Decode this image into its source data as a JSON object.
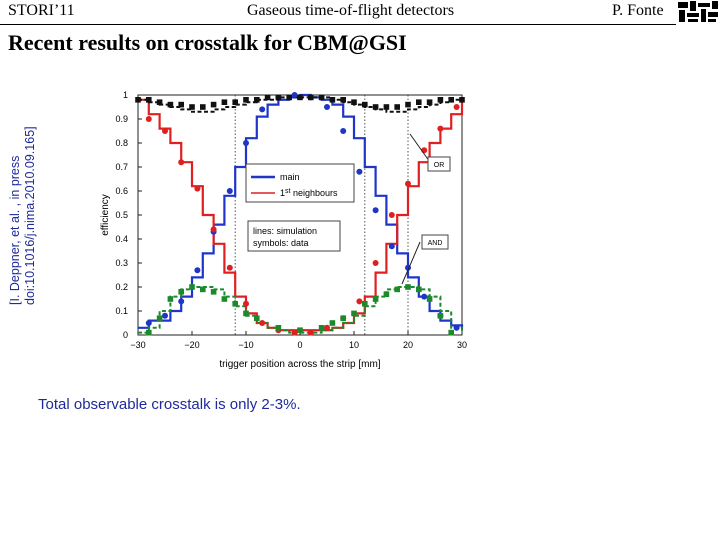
{
  "header": {
    "left": "STORI’11",
    "center": "Gaseous time-of-flight detectors",
    "right": "P. Fonte"
  },
  "title": "Recent results on crosstalk for CBM@GSI",
  "citation": {
    "line1": "[I. Deppner, et al. , in press",
    "line2": "doi:10.1016/j.nima.2010.09.165]"
  },
  "caption": "Total observable crosstalk is only 2-3%.",
  "logo_icon": "institution-logo-icon",
  "chart_data": {
    "type": "line",
    "xlabel": "trigger position across the strip [mm]",
    "ylabel": "efficiency",
    "xlim": [
      -30,
      30
    ],
    "ylim": [
      0,
      1
    ],
    "xticks": [
      -30,
      -20,
      -10,
      0,
      10,
      20,
      30
    ],
    "yticks": [
      0,
      0.1,
      0.2,
      0.3,
      0.4,
      0.5,
      0.6,
      0.7,
      0.8,
      0.9,
      1
    ],
    "vlines": [
      -12,
      12,
      20
    ],
    "legend": {
      "main": "main",
      "neighbours_prefix": "1",
      "neighbours_sup": "st",
      "neighbours_suffix": " neighbours",
      "note1": "lines: simulation",
      "note2": "symbols: data"
    },
    "annotations": {
      "or": "OR",
      "and": "AND"
    },
    "colors": {
      "main": "#1f35c8",
      "neighbour": "#e02020",
      "and": "#1a8a2a",
      "or": "#111111"
    },
    "series": [
      {
        "name": "main",
        "style": "line",
        "x": [
          -30,
          -28,
          -26,
          -24,
          -22,
          -20,
          -18,
          -16,
          -14,
          -12,
          -10,
          -8,
          -6,
          -4,
          -2,
          0,
          2,
          4,
          6,
          8,
          10,
          12,
          14,
          16,
          18,
          20,
          22,
          24,
          26,
          28,
          30
        ],
        "y": [
          0.03,
          0.06,
          0.06,
          0.1,
          0.16,
          0.24,
          0.34,
          0.46,
          0.58,
          0.7,
          0.82,
          0.91,
          0.96,
          0.98,
          0.99,
          1.0,
          0.99,
          0.98,
          0.96,
          0.91,
          0.82,
          0.7,
          0.58,
          0.46,
          0.34,
          0.24,
          0.16,
          0.1,
          0.06,
          0.04,
          0.03
        ]
      },
      {
        "name": "1st neighbours",
        "style": "line",
        "x": [
          -30,
          -28,
          -26,
          -24,
          -22,
          -20,
          -18,
          -16,
          -14,
          -12,
          -10,
          -8,
          -6,
          -4,
          -2,
          0,
          2,
          4,
          6,
          8,
          10,
          12,
          14,
          16,
          18,
          20,
          22,
          24,
          26,
          28,
          30
        ],
        "y": [
          0.98,
          0.92,
          0.86,
          0.8,
          0.72,
          0.62,
          0.5,
          0.38,
          0.26,
          0.16,
          0.09,
          0.05,
          0.03,
          0.02,
          0.02,
          0.02,
          0.02,
          0.02,
          0.03,
          0.05,
          0.09,
          0.16,
          0.26,
          0.38,
          0.5,
          0.62,
          0.72,
          0.8,
          0.86,
          0.92,
          0.98
        ]
      },
      {
        "name": "AND",
        "style": "dash",
        "x": [
          -30,
          -28,
          -26,
          -24,
          -22,
          -20,
          -18,
          -16,
          -14,
          -12,
          -10,
          -8,
          -6,
          -4,
          -2,
          0,
          2,
          4,
          6,
          8,
          10,
          12,
          14,
          16,
          18,
          20,
          22,
          24,
          26,
          28,
          30
        ],
        "y": [
          0.01,
          0.03,
          0.1,
          0.16,
          0.19,
          0.2,
          0.2,
          0.19,
          0.16,
          0.12,
          0.08,
          0.05,
          0.03,
          0.02,
          0.01,
          0.01,
          0.01,
          0.02,
          0.03,
          0.05,
          0.08,
          0.12,
          0.16,
          0.19,
          0.2,
          0.2,
          0.19,
          0.16,
          0.1,
          0.03,
          0.01
        ]
      },
      {
        "name": "OR",
        "style": "dash",
        "x": [
          -30,
          -28,
          -26,
          -24,
          -22,
          -20,
          -18,
          -16,
          -14,
          -12,
          -10,
          -8,
          -6,
          -4,
          -2,
          0,
          2,
          4,
          6,
          8,
          10,
          12,
          14,
          16,
          18,
          20,
          22,
          24,
          26,
          28,
          30
        ],
        "y": [
          0.98,
          0.97,
          0.96,
          0.95,
          0.94,
          0.93,
          0.93,
          0.94,
          0.95,
          0.96,
          0.97,
          0.98,
          0.98,
          0.99,
          0.99,
          0.99,
          0.99,
          0.99,
          0.98,
          0.97,
          0.96,
          0.95,
          0.94,
          0.93,
          0.93,
          0.94,
          0.95,
          0.96,
          0.97,
          0.98,
          0.98
        ]
      },
      {
        "name": "main data",
        "style": "points",
        "x": [
          -28,
          -25,
          -22,
          -19,
          -16,
          -13,
          -10,
          -7,
          -4,
          -1,
          2,
          5,
          8,
          11,
          14,
          17,
          20,
          23,
          26,
          29
        ],
        "y": [
          0.05,
          0.08,
          0.14,
          0.27,
          0.43,
          0.6,
          0.8,
          0.94,
          0.99,
          1.0,
          0.99,
          0.95,
          0.85,
          0.68,
          0.52,
          0.37,
          0.28,
          0.16,
          0.08,
          0.03
        ]
      },
      {
        "name": "neighbour data",
        "style": "points",
        "x": [
          -28,
          -25,
          -22,
          -19,
          -16,
          -13,
          -10,
          -7,
          -4,
          -1,
          2,
          5,
          8,
          11,
          14,
          17,
          20,
          23,
          26,
          29
        ],
        "y": [
          0.9,
          0.85,
          0.72,
          0.61,
          0.44,
          0.28,
          0.13,
          0.05,
          0.02,
          0.01,
          0.01,
          0.03,
          0.07,
          0.14,
          0.3,
          0.5,
          0.63,
          0.77,
          0.86,
          0.95
        ]
      },
      {
        "name": "AND data",
        "style": "squares",
        "x": [
          -28,
          -26,
          -24,
          -22,
          -20,
          -18,
          -16,
          -14,
          -12,
          -10,
          -8,
          -4,
          0,
          4,
          6,
          8,
          10,
          12,
          14,
          16,
          18,
          20,
          22,
          24,
          26,
          28
        ],
        "y": [
          0.01,
          0.07,
          0.15,
          0.18,
          0.2,
          0.19,
          0.18,
          0.15,
          0.13,
          0.09,
          0.07,
          0.03,
          0.02,
          0.03,
          0.05,
          0.07,
          0.09,
          0.13,
          0.15,
          0.17,
          0.19,
          0.2,
          0.19,
          0.15,
          0.08,
          0.01
        ]
      },
      {
        "name": "OR data",
        "style": "squares",
        "x": [
          -30,
          -28,
          -26,
          -24,
          -22,
          -20,
          -18,
          -16,
          -14,
          -12,
          -10,
          -8,
          -6,
          -4,
          -2,
          0,
          2,
          4,
          6,
          8,
          10,
          12,
          14,
          16,
          18,
          20,
          22,
          24,
          26,
          28,
          30
        ],
        "y": [
          0.98,
          0.98,
          0.97,
          0.96,
          0.96,
          0.95,
          0.95,
          0.96,
          0.97,
          0.97,
          0.98,
          0.98,
          0.99,
          0.99,
          0.99,
          0.99,
          0.99,
          0.99,
          0.98,
          0.98,
          0.97,
          0.96,
          0.95,
          0.95,
          0.95,
          0.96,
          0.97,
          0.97,
          0.98,
          0.98,
          0.98
        ]
      }
    ]
  }
}
